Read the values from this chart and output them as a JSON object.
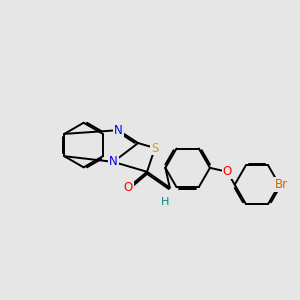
{
  "background_color": "#e6e6e6",
  "atom_colors": {
    "S": "#ccaa00",
    "N": "#0000ee",
    "O": "#ff0000",
    "H": "#008888",
    "Br": "#cc6600",
    "C": "#000000"
  },
  "font_size": 8.5,
  "lw": 1.4,
  "dbo": 0.055
}
